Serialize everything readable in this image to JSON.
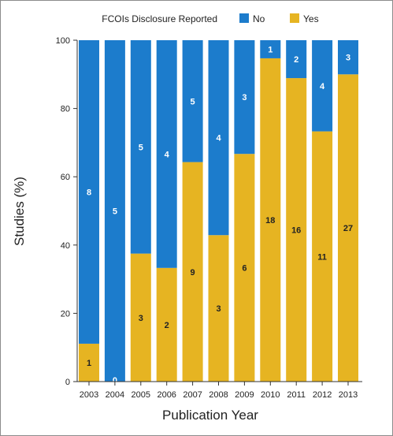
{
  "chart_data": {
    "type": "bar",
    "stacked": true,
    "xlabel": "Publication Year",
    "ylabel": "Studies (%)",
    "ylim": [
      0,
      100
    ],
    "yticks": [
      "0",
      "20",
      "40",
      "60",
      "80",
      "100"
    ],
    "grid": false,
    "legend": {
      "title": "FCOIs Disclosure Reported",
      "placement": "top",
      "entries": [
        "No",
        "Yes"
      ]
    },
    "categories": [
      "2003",
      "2004",
      "2005",
      "2006",
      "2007",
      "2008",
      "2009",
      "2010",
      "2011",
      "2012",
      "2013"
    ],
    "series": [
      {
        "name": "Yes",
        "color": "#e6b422",
        "values": [
          11.1,
          0,
          37.5,
          33.3,
          64.3,
          42.9,
          66.7,
          94.7,
          88.9,
          73.3,
          90.0
        ],
        "counts": [
          "1",
          "0",
          "3",
          "2",
          "9",
          "3",
          "6",
          "18",
          "16",
          "11",
          "27"
        ]
      },
      {
        "name": "No",
        "color": "#1c7ccc",
        "values": [
          88.9,
          100,
          62.5,
          66.7,
          35.7,
          57.1,
          33.3,
          5.3,
          11.1,
          26.7,
          10.0
        ],
        "counts": [
          "8",
          "5",
          "5",
          "4",
          "5",
          "4",
          "3",
          "1",
          "2",
          "4",
          "3"
        ]
      }
    ]
  }
}
